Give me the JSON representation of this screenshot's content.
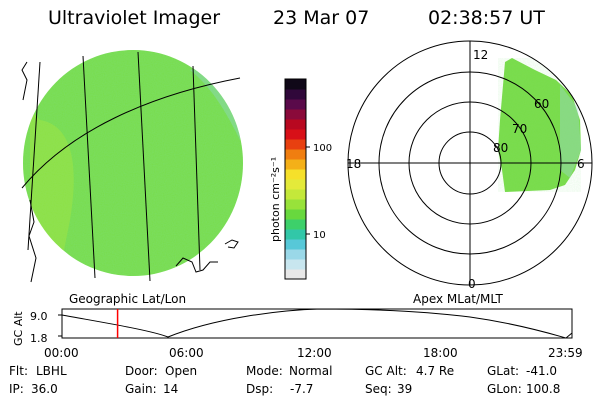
{
  "header": {
    "instrument": "Ultraviolet Imager",
    "date": "23 Mar 07",
    "time": "02:38:57 UT"
  },
  "colorbar": {
    "unit_label": "photon cm⁻²s⁻¹",
    "tick_100": "100",
    "tick_10": "10",
    "colors": [
      "#e8e8e8",
      "#c8e6ef",
      "#9ad8e8",
      "#57c8d8",
      "#32c7a8",
      "#3dd06a",
      "#68d83e",
      "#98e23a",
      "#c4e83a",
      "#e4ea3a",
      "#f6e02a",
      "#f4b018",
      "#f07e10",
      "#e84010",
      "#d81018",
      "#b80820",
      "#8a0a3a",
      "#5a0a4a",
      "#30083a",
      "#100818"
    ]
  },
  "left_panel": {
    "projection_label": "Geographic Lat/Lon",
    "fill_color": "#79dc4c"
  },
  "right_panel": {
    "projection_label": "Apex MLat/MLT",
    "mlt_labels": {
      "top": "12",
      "left": "18",
      "right": "6",
      "bottom": "0"
    },
    "lat_labels": [
      "60",
      "70",
      "80"
    ]
  },
  "altitude_plot": {
    "ylabel": "GC Alt",
    "ytick_high": "9.0",
    "ytick_low": "1.8",
    "xticks": [
      "00:00",
      "06:00",
      "12:00",
      "18:00",
      "23:59"
    ],
    "current_time_fraction": 0.109,
    "marker_color": "#ff0000"
  },
  "status": {
    "filter_label": "Flt:",
    "filter_value": "LBHL",
    "door_label": "Door:",
    "door_value": "Open",
    "mode_label": "Mode:",
    "mode_value": "Normal",
    "gc_alt_label": "GC Alt:",
    "gc_alt_value": "4.7 Re",
    "glat_label": "GLat:",
    "glat_value": "-41.0",
    "ip_label": "IP:",
    "ip_value": "36.0",
    "gain_label": "Gain:",
    "gain_value": "14",
    "dsp_label": "Dsp:",
    "dsp_value": "-7.7",
    "seq_label": "Seq:",
    "seq_value": "39",
    "glon_label": "GLon:",
    "glon_value": "100.8"
  }
}
